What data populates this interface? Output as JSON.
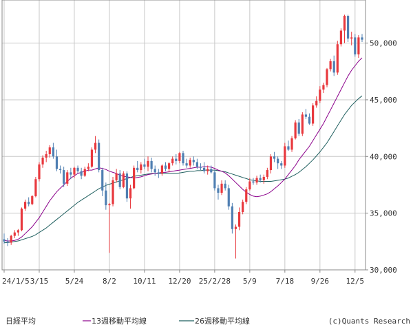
{
  "chart_data": {
    "type": "candlestick",
    "title": "",
    "legend": [
      {
        "name": "日経平均",
        "color": ""
      },
      {
        "name": "13週移動平均線",
        "color": "#8b008b"
      },
      {
        "name": "26週移動平均線",
        "color": "#1f5f5f"
      }
    ],
    "credit": "(c)Quants Research",
    "colors": {
      "up": "#e8383d",
      "down": "#4f7fb2",
      "ma13": "#8b008b",
      "ma26": "#1f5f5f",
      "grid": "#c8c8c8",
      "axis": "#888888"
    },
    "x_tick_labels": [
      {
        "label": "24/1/5",
        "index": 0
      },
      {
        "label": "3/15",
        "index": 10
      },
      {
        "label": "5/24",
        "index": 20
      },
      {
        "label": "8/2",
        "index": 30
      },
      {
        "label": "10/11",
        "index": 40
      },
      {
        "label": "12/20",
        "index": 50
      },
      {
        "label": "25/2/28",
        "index": 60
      },
      {
        "label": "5/9",
        "index": 70
      },
      {
        "label": "7/18",
        "index": 80
      },
      {
        "label": "9/26",
        "index": 90
      },
      {
        "label": "12/5",
        "index": 100
      }
    ],
    "y_ticks": [
      30000,
      35000,
      40000,
      45000,
      50000
    ],
    "y_tick_labels": [
      "30,000",
      "35,000",
      "40,000",
      "45,000",
      "50,000"
    ],
    "ylim": [
      30000,
      53800
    ],
    "grid": true,
    "candles": [
      [
        32700,
        33200,
        32300,
        32500
      ],
      [
        32500,
        32800,
        32100,
        32400
      ],
      [
        32400,
        33100,
        32200,
        33000
      ],
      [
        33000,
        33500,
        32800,
        33300
      ],
      [
        33300,
        33600,
        33000,
        33500
      ],
      [
        33500,
        35500,
        33400,
        35400
      ],
      [
        35400,
        36200,
        35200,
        36000
      ],
      [
        36000,
        36400,
        35600,
        35800
      ],
      [
        35800,
        36600,
        35700,
        36500
      ],
      [
        36500,
        38200,
        36400,
        38000
      ],
      [
        38000,
        39500,
        37800,
        39300
      ],
      [
        39300,
        40100,
        39000,
        39900
      ],
      [
        39900,
        40500,
        39500,
        40200
      ],
      [
        40200,
        41000,
        39900,
        40800
      ],
      [
        40800,
        41200,
        39800,
        40000
      ],
      [
        40000,
        40600,
        38700,
        38900
      ],
      [
        38900,
        39200,
        38500,
        38800
      ],
      [
        38800,
        39100,
        37300,
        37600
      ],
      [
        37600,
        38800,
        37400,
        38600
      ],
      [
        38600,
        39000,
        38000,
        38400
      ],
      [
        38400,
        39100,
        38100,
        39000
      ],
      [
        39000,
        39200,
        38500,
        38700
      ],
      [
        38700,
        39000,
        38000,
        38300
      ],
      [
        38300,
        39100,
        38200,
        38900
      ],
      [
        38900,
        39400,
        38700,
        39100
      ],
      [
        39100,
        40800,
        39000,
        40600
      ],
      [
        40600,
        41800,
        40300,
        41200
      ],
      [
        41200,
        41500,
        38600,
        38800
      ],
      [
        38800,
        39000,
        36500,
        37000
      ],
      [
        37000,
        37700,
        35300,
        35700
      ],
      [
        35700,
        35900,
        31500,
        35800
      ],
      [
        35800,
        38200,
        35600,
        37900
      ],
      [
        37900,
        38900,
        37700,
        38500
      ],
      [
        38500,
        38800,
        37100,
        37300
      ],
      [
        37300,
        38700,
        37200,
        38500
      ],
      [
        38500,
        38700,
        36000,
        36300
      ],
      [
        36300,
        37500,
        35400,
        37200
      ],
      [
        37200,
        39200,
        37100,
        39000
      ],
      [
        39000,
        39600,
        38600,
        38800
      ],
      [
        38800,
        39500,
        38500,
        39300
      ],
      [
        39300,
        39800,
        38900,
        39100
      ],
      [
        39100,
        40000,
        38700,
        39600
      ],
      [
        39600,
        39900,
        38600,
        38900
      ],
      [
        38900,
        39200,
        38300,
        38600
      ],
      [
        38600,
        38900,
        38100,
        38500
      ],
      [
        38500,
        39300,
        38300,
        39200
      ],
      [
        39200,
        39500,
        38700,
        38900
      ],
      [
        38900,
        39500,
        38600,
        39400
      ],
      [
        39400,
        40000,
        39200,
        39800
      ],
      [
        39800,
        40200,
        39300,
        39600
      ],
      [
        39600,
        40400,
        39400,
        40300
      ],
      [
        40300,
        40500,
        39200,
        39400
      ],
      [
        39400,
        39800,
        39000,
        39200
      ],
      [
        39200,
        39900,
        39000,
        39700
      ],
      [
        39700,
        40000,
        39200,
        39500
      ],
      [
        39500,
        39800,
        38900,
        39100
      ],
      [
        39100,
        39400,
        38800,
        39000
      ],
      [
        39000,
        39500,
        38500,
        38700
      ],
      [
        38700,
        39200,
        38400,
        38900
      ],
      [
        38900,
        39200,
        38500,
        38600
      ],
      [
        38600,
        38800,
        37000,
        37200
      ],
      [
        37200,
        37500,
        36200,
        36800
      ],
      [
        36800,
        37900,
        36600,
        37600
      ],
      [
        37600,
        37900,
        37000,
        37200
      ],
      [
        37200,
        37500,
        35300,
        35600
      ],
      [
        35600,
        35900,
        33200,
        33600
      ],
      [
        33600,
        34000,
        31000,
        33800
      ],
      [
        33800,
        35500,
        33500,
        35100
      ],
      [
        35100,
        36200,
        34900,
        36000
      ],
      [
        36000,
        37300,
        35800,
        37100
      ],
      [
        37100,
        38100,
        37000,
        37800
      ],
      [
        37800,
        38100,
        37500,
        37700
      ],
      [
        37700,
        38300,
        37500,
        38100
      ],
      [
        38100,
        38400,
        37700,
        37900
      ],
      [
        37900,
        38400,
        37600,
        38200
      ],
      [
        38200,
        39000,
        38000,
        38800
      ],
      [
        38800,
        40200,
        38500,
        40000
      ],
      [
        40000,
        40400,
        39500,
        39800
      ],
      [
        39800,
        40000,
        38900,
        39400
      ],
      [
        39400,
        39600,
        38900,
        39200
      ],
      [
        39200,
        41200,
        39000,
        40900
      ],
      [
        40900,
        41400,
        40500,
        40600
      ],
      [
        40600,
        41800,
        40400,
        41600
      ],
      [
        41600,
        43200,
        41500,
        43000
      ],
      [
        43000,
        43300,
        41800,
        42000
      ],
      [
        42000,
        43900,
        41800,
        43700
      ],
      [
        43700,
        44200,
        43300,
        43500
      ],
      [
        43500,
        43800,
        42800,
        42900
      ],
      [
        42900,
        44700,
        42700,
        44500
      ],
      [
        44500,
        45300,
        44300,
        44900
      ],
      [
        44900,
        46200,
        44700,
        45900
      ],
      [
        45900,
        46500,
        45600,
        46300
      ],
      [
        46300,
        47800,
        46100,
        47700
      ],
      [
        47700,
        48600,
        47500,
        48400
      ],
      [
        48400,
        48900,
        47100,
        47400
      ],
      [
        47400,
        50200,
        47200,
        49900
      ],
      [
        49900,
        51300,
        49700,
        51100
      ],
      [
        51100,
        52500,
        50000,
        52400
      ],
      [
        52400,
        52500,
        50100,
        50400
      ],
      [
        50400,
        51000,
        49800,
        50500
      ],
      [
        50500,
        50800,
        48800,
        49000
      ],
      [
        49000,
        50700,
        48700,
        50500
      ],
      [
        50500,
        50800,
        50100,
        50300
      ]
    ],
    "ma13": [
      32600,
      32550,
      32550,
      32600,
      32700,
      32900,
      33200,
      33500,
      33800,
      34200,
      34600,
      35100,
      35600,
      36100,
      36500,
      36900,
      37200,
      37500,
      37800,
      38100,
      38300,
      38500,
      38600,
      38700,
      38800,
      38800,
      38900,
      39000,
      38950,
      38850,
      38700,
      38600,
      38500,
      38350,
      38250,
      38200,
      38150,
      38100,
      38150,
      38200,
      38300,
      38400,
      38450,
      38500,
      38550,
      38600,
      38600,
      38650,
      38700,
      38750,
      38800,
      38850,
      38900,
      38950,
      39000,
      39050,
      39050,
      39100,
      39100,
      39050,
      38950,
      38800,
      38700,
      38550,
      38300,
      38000,
      37700,
      37400,
      37100,
      36850,
      36650,
      36500,
      36450,
      36500,
      36600,
      36700,
      36900,
      37150,
      37400,
      37700,
      38000,
      38400,
      38800,
      39200,
      39700,
      40100,
      40500,
      40900,
      41400,
      41900,
      42400,
      42900,
      43500,
      44100,
      44700,
      45300,
      45900,
      46500,
      47100,
      47600,
      48000,
      48400,
      48700
    ],
    "ma26": [
      32400,
      32400,
      32450,
      32500,
      32550,
      32650,
      32750,
      32850,
      32950,
      33100,
      33300,
      33500,
      33700,
      33950,
      34200,
      34450,
      34700,
      34950,
      35200,
      35450,
      35700,
      35950,
      36150,
      36350,
      36550,
      36750,
      36950,
      37150,
      37300,
      37450,
      37550,
      37650,
      37750,
      37850,
      37950,
      38050,
      38150,
      38250,
      38300,
      38350,
      38400,
      38450,
      38500,
      38500,
      38500,
      38500,
      38500,
      38500,
      38500,
      38500,
      38550,
      38600,
      38650,
      38700,
      38700,
      38750,
      38750,
      38800,
      38800,
      38800,
      38800,
      38750,
      38700,
      38650,
      38550,
      38450,
      38350,
      38250,
      38150,
      38050,
      37950,
      37900,
      37850,
      37800,
      37800,
      37800,
      37800,
      37850,
      37900,
      37950,
      38000,
      38100,
      38250,
      38400,
      38600,
      38850,
      39100,
      39400,
      39700,
      40050,
      40400,
      40800,
      41200,
      41700,
      42200,
      42700,
      43200,
      43700,
      44100,
      44500,
      44800,
      45100,
      45350
    ]
  }
}
